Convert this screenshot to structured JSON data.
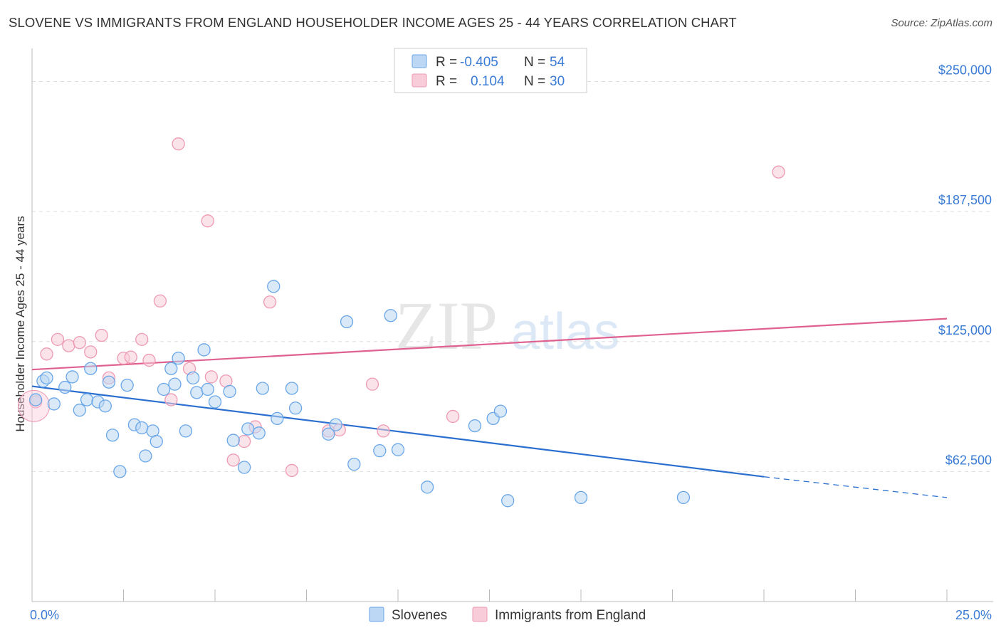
{
  "title": "SLOVENE VS IMMIGRANTS FROM ENGLAND HOUSEHOLDER INCOME AGES 25 - 44 YEARS CORRELATION CHART",
  "source": "Source: ZipAtlas.com",
  "watermark": {
    "part1": "ZIP",
    "part2": "atlas"
  },
  "legend": {
    "rows": [
      {
        "r_label": "R = ",
        "r_value": "-0.405",
        "n_label": "N = ",
        "n_value": "54"
      },
      {
        "r_label": "R = ",
        "r_value": "0.104",
        "n_label": "N = ",
        "n_value": "30"
      }
    ]
  },
  "chart_data": {
    "type": "scatter",
    "title": "SLOVENE VS IMMIGRANTS FROM ENGLAND HOUSEHOLDER INCOME AGES 25 - 44 YEARS CORRELATION CHART",
    "xlabel": "",
    "ylabel": "Householder Income Ages 25 - 44 years",
    "xlim": [
      0,
      25
    ],
    "ylim": [
      0,
      262500
    ],
    "x_tick_labels": [
      "0.0%",
      "25.0%"
    ],
    "y_ticks": [
      62500,
      125000,
      187500,
      250000
    ],
    "y_tick_labels": [
      "$62,500",
      "$125,000",
      "$187,500",
      "$250,000"
    ],
    "series": [
      {
        "name": "Slovenes",
        "color": "#6aa7e8",
        "fill": "#bcd7f3",
        "trend": {
          "x": [
            0,
            20
          ],
          "y": [
            103500,
            60000
          ],
          "dash_to": [
            25,
            50000
          ],
          "color": "#2a6fcf"
        },
        "points": [
          [
            0.1,
            97000
          ],
          [
            0.3,
            106000
          ],
          [
            0.4,
            107500
          ],
          [
            0.6,
            95000
          ],
          [
            0.9,
            103000
          ],
          [
            1.1,
            108000
          ],
          [
            1.3,
            92000
          ],
          [
            1.5,
            97000
          ],
          [
            1.6,
            112000
          ],
          [
            1.8,
            96000
          ],
          [
            2.0,
            94000
          ],
          [
            2.1,
            105500
          ],
          [
            2.2,
            80000
          ],
          [
            2.4,
            62500
          ],
          [
            2.6,
            104000
          ],
          [
            2.8,
            85000
          ],
          [
            3.0,
            83500
          ],
          [
            3.1,
            70000
          ],
          [
            3.3,
            82000
          ],
          [
            3.4,
            77000
          ],
          [
            3.6,
            102000
          ],
          [
            3.8,
            112000
          ],
          [
            3.9,
            104500
          ],
          [
            4.0,
            117000
          ],
          [
            4.2,
            82000
          ],
          [
            4.4,
            107500
          ],
          [
            4.5,
            100500
          ],
          [
            4.7,
            121000
          ],
          [
            4.8,
            102000
          ],
          [
            5.0,
            96000
          ],
          [
            5.4,
            101000
          ],
          [
            5.5,
            77500
          ],
          [
            5.8,
            64500
          ],
          [
            5.9,
            83000
          ],
          [
            6.2,
            81000
          ],
          [
            6.3,
            102500
          ],
          [
            6.6,
            151500
          ],
          [
            6.7,
            88000
          ],
          [
            7.1,
            102500
          ],
          [
            7.2,
            93000
          ],
          [
            8.1,
            80500
          ],
          [
            8.3,
            85000
          ],
          [
            8.6,
            134500
          ],
          [
            8.8,
            66000
          ],
          [
            9.5,
            72500
          ],
          [
            9.8,
            137500
          ],
          [
            10.0,
            73000
          ],
          [
            10.8,
            55000
          ],
          [
            12.1,
            84500
          ],
          [
            12.6,
            88000
          ],
          [
            12.8,
            91500
          ],
          [
            13.0,
            48500
          ],
          [
            15.0,
            50000
          ],
          [
            17.8,
            50000
          ]
        ]
      },
      {
        "name": "Immigrants from England",
        "color": "#ee9ab3",
        "fill": "#f8ccd9",
        "trend": {
          "x": [
            0,
            25
          ],
          "y": [
            111500,
            136000
          ],
          "color": "#e06090"
        },
        "points": [
          [
            0.1,
            96000
          ],
          [
            0.4,
            119000
          ],
          [
            0.7,
            126000
          ],
          [
            1.0,
            123000
          ],
          [
            1.3,
            124500
          ],
          [
            1.6,
            120000
          ],
          [
            1.9,
            128000
          ],
          [
            2.1,
            107500
          ],
          [
            2.5,
            117000
          ],
          [
            2.7,
            117500
          ],
          [
            3.0,
            126000
          ],
          [
            3.2,
            116000
          ],
          [
            3.5,
            144500
          ],
          [
            3.8,
            97000
          ],
          [
            4.0,
            220000
          ],
          [
            4.3,
            112000
          ],
          [
            4.8,
            183000
          ],
          [
            4.9,
            108000
          ],
          [
            5.3,
            106000
          ],
          [
            5.5,
            68000
          ],
          [
            5.8,
            77000
          ],
          [
            6.1,
            84000
          ],
          [
            6.5,
            144000
          ],
          [
            7.1,
            63000
          ],
          [
            8.1,
            82000
          ],
          [
            8.4,
            82500
          ],
          [
            9.3,
            104500
          ],
          [
            9.6,
            82000
          ],
          [
            11.5,
            89000
          ],
          [
            20.4,
            206500
          ]
        ]
      }
    ]
  },
  "bottom_legend": [
    {
      "label": "Slovenes"
    },
    {
      "label": "Immigrants from England"
    }
  ]
}
